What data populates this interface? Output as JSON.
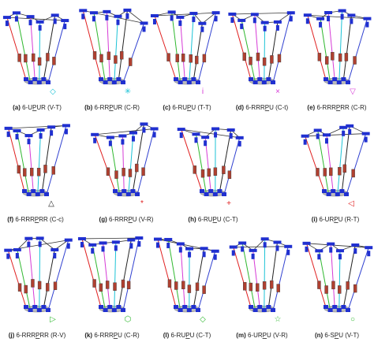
{
  "panels": [
    {
      "letter": "(a)",
      "name": [
        "6-U",
        "P",
        "UR"
      ],
      "config": "(V-T)",
      "marker": "◇",
      "marker_color": "#1cc3d6"
    },
    {
      "letter": "(b)",
      "name": [
        "6-RR",
        "P",
        "UR"
      ],
      "config": "(C-R)",
      "marker": "✳",
      "marker_color": "#1cc3d6"
    },
    {
      "letter": "(c)",
      "name": [
        "6-RU",
        "P",
        "U"
      ],
      "config": "(T-T)",
      "marker": "i",
      "marker_color": "#d63bd6"
    },
    {
      "letter": "(d)",
      "name": [
        "6-RRR",
        "P",
        "U"
      ],
      "config": "(C-t)",
      "marker": "×",
      "marker_color": "#d63bd6"
    },
    {
      "letter": "(e)",
      "name": [
        "6-RRR",
        "P",
        "RR"
      ],
      "config": "(C-R)",
      "marker": "▽",
      "marker_color": "#d63bd6"
    },
    {
      "letter": "(f)",
      "name": [
        "6-RRR",
        "P",
        "RR"
      ],
      "config": "(C-c)",
      "marker": "△",
      "marker_color": "#222222"
    },
    {
      "letter": "(g)",
      "name": [
        "6-RRR",
        "P",
        "U"
      ],
      "config": "(V-R)",
      "marker": "*",
      "marker_color": "#e02020"
    },
    {
      "letter": "(h)",
      "name": [
        "6-RU",
        "P",
        "U"
      ],
      "config": "(C-T)",
      "marker": "+",
      "marker_color": "#e02020"
    },
    {
      "letter": "(i)",
      "name": [
        "6-UR",
        "P",
        "U"
      ],
      "config": "(R-T)",
      "marker": "◁",
      "marker_color": "#e02020"
    },
    {
      "letter": "(j)",
      "name": [
        "6-RRR",
        "P",
        "RR"
      ],
      "config": "(R-V)",
      "marker": "▷",
      "marker_color": "#2fb82f"
    },
    {
      "letter": "(k)",
      "name": [
        "6-RRR",
        "P",
        "U"
      ],
      "config": "(C-R)",
      "marker": "⬡",
      "marker_color": "#2fb82f"
    },
    {
      "letter": "(l)",
      "name": [
        "6-RU",
        "P",
        "U"
      ],
      "config": "(C-T)",
      "marker": "◇",
      "marker_color": "#2fb82f"
    },
    {
      "letter": "(m)",
      "name": [
        "6-UR",
        "P",
        "U"
      ],
      "config": "(V-R)",
      "marker": "☆",
      "marker_color": "#2fb82f"
    },
    {
      "letter": "(n)",
      "name": [
        "6-S",
        "P",
        "U"
      ],
      "config": "(V-T)",
      "marker": "○",
      "marker_color": "#2fb82f"
    }
  ]
}
